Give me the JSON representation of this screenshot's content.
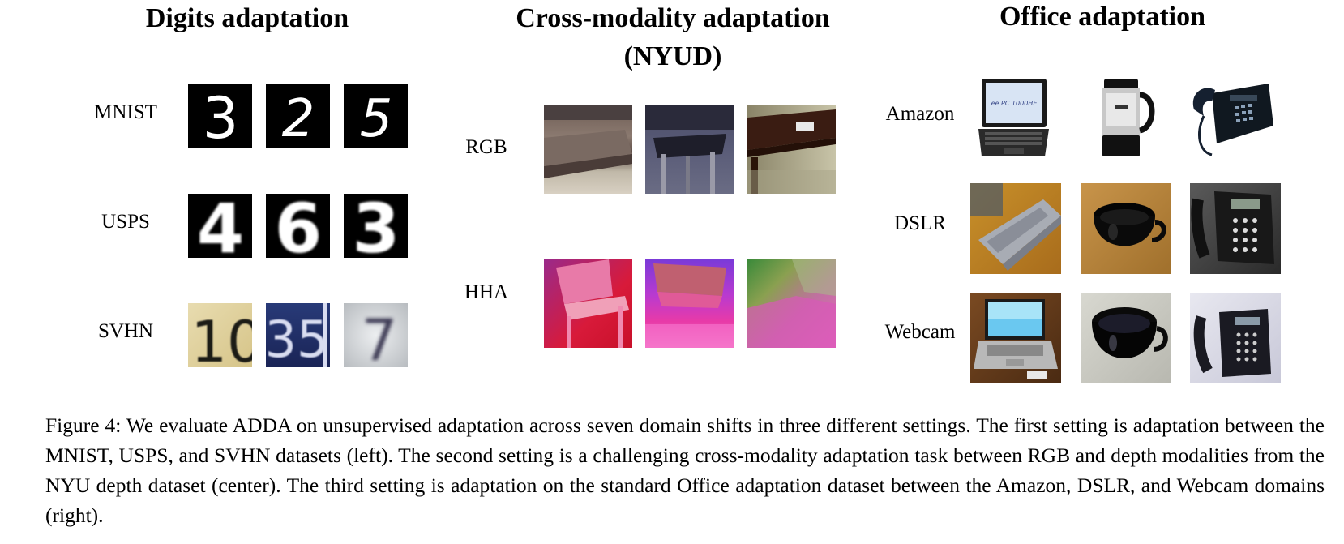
{
  "panels": {
    "digits": {
      "title": "Digits adaptation",
      "rows": [
        "MNIST",
        "USPS",
        "SVHN"
      ],
      "mnist_digits": [
        "3",
        "2",
        "5"
      ],
      "usps_digits": [
        "4",
        "6",
        "3"
      ],
      "svhn_digits": [
        "10",
        "35",
        "7"
      ]
    },
    "cross_modality": {
      "title_line1": "Cross-modality adaptation",
      "title_line2": "(NYUD)",
      "rows": [
        "RGB",
        "HHA"
      ]
    },
    "office": {
      "title": "Office adaptation",
      "rows": [
        "Amazon",
        "DSLR",
        "Webcam"
      ],
      "laptop_screen_text": "ee PC 1000HE"
    }
  },
  "caption": "Figure 4: We evaluate ADDA on unsupervised adaptation across seven domain shifts in three different settings. The first setting is adaptation between the MNIST, USPS, and SVHN datasets (left). The second setting is a challenging cross-modality adaptation task between RGB and depth modalities from the NYU depth dataset (center). The third setting is adaptation on the standard Office adaptation dataset between the Amazon, DSLR, and Webcam domains (right)."
}
